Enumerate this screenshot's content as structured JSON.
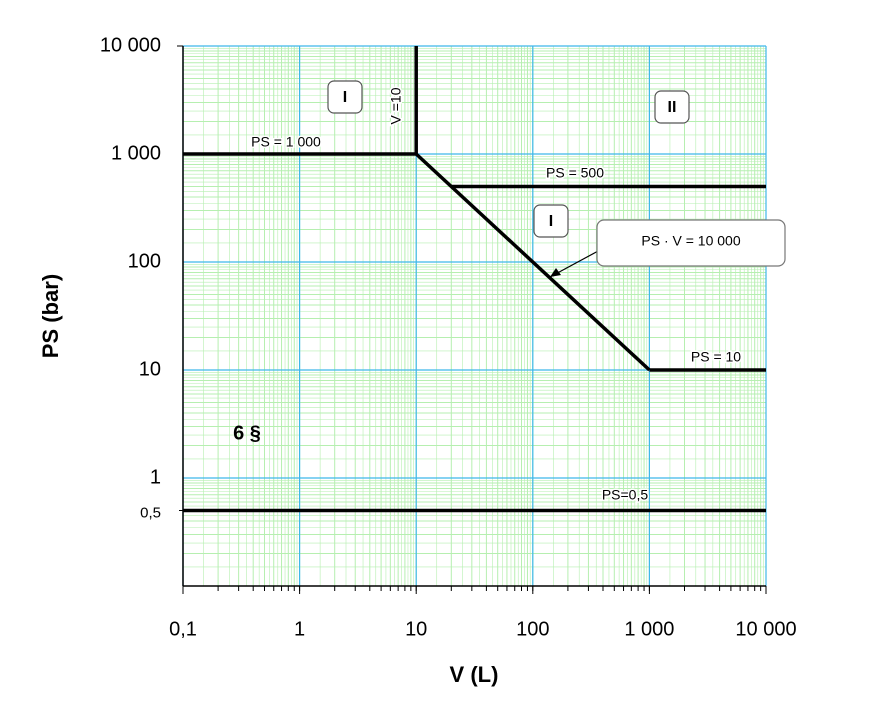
{
  "chart_data": {
    "type": "line",
    "x_label": "V (L)",
    "y_label": "PS (bar)",
    "xscale": "log",
    "yscale": "log",
    "grid": true,
    "xlim": [
      0.1,
      10000
    ],
    "ylim": [
      0.1,
      10000
    ],
    "xticks": [
      {
        "value": 0.1,
        "label": "0,1"
      },
      1,
      10,
      100,
      {
        "value": 1000,
        "label": "1 000"
      },
      {
        "value": 10000,
        "label": "10 000"
      }
    ],
    "yticks": [
      {
        "value": 0.5,
        "label": "0,5"
      },
      1,
      10,
      100,
      {
        "value": 1000,
        "label": "1 000"
      },
      {
        "value": 10000,
        "label": "10 000"
      }
    ],
    "series": [
      {
        "name": "PS = 1 000",
        "color": "#000000",
        "x": [
          0.1,
          10
        ],
        "values": [
          1000,
          1000
        ]
      },
      {
        "name": "V =10",
        "color": "#000000",
        "x": [
          10,
          10
        ],
        "values": [
          1000,
          10000
        ]
      },
      {
        "name": "PS · V = 10 000",
        "color": "#000000",
        "x": [
          10,
          1000
        ],
        "values": [
          1000,
          10
        ]
      },
      {
        "name": "PS = 500",
        "color": "#000000",
        "x": [
          20,
          10000
        ],
        "values": [
          500,
          500
        ]
      },
      {
        "name": "PS = 10",
        "color": "#000000",
        "x": [
          1000,
          10000
        ],
        "values": [
          10,
          10
        ]
      },
      {
        "name": "PS=0,5",
        "color": "#000000",
        "x": [
          0.1,
          10000
        ],
        "values": [
          0.5,
          0.5
        ]
      }
    ],
    "annotations": [
      "I",
      "II",
      "I",
      "6 §"
    ]
  }
}
